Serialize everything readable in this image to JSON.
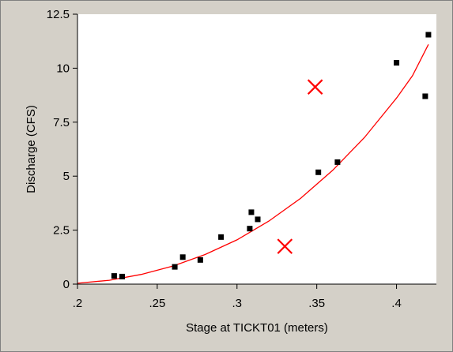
{
  "colors": {
    "background": "#d4d0c8",
    "plot_background": "#ffffff",
    "fit_line": "#ff0000",
    "excluded_marker": "#ff0000",
    "point": "#000000"
  },
  "chart_data": {
    "type": "scatter",
    "title": "",
    "xlabel": "Stage at TICKT01 (meters)",
    "ylabel": "Discharge (CFS)",
    "xlim": [
      0.2,
      0.425
    ],
    "ylim": [
      0,
      12.5
    ],
    "x_ticks": [
      0.2,
      0.25,
      0.3,
      0.35,
      0.4
    ],
    "x_tick_labels": [
      ".2",
      ".25",
      ".3",
      ".35",
      ".4"
    ],
    "y_ticks": [
      0,
      2.5,
      5,
      7.5,
      10,
      12.5
    ],
    "y_tick_labels": [
      "0",
      "2.5",
      "5",
      "7.5",
      "10",
      "12.5"
    ],
    "grid": false,
    "legend": "none",
    "series": [
      {
        "marker": "square",
        "points": [
          [
            0.223,
            0.38
          ],
          [
            0.228,
            0.35
          ],
          [
            0.261,
            0.8
          ],
          [
            0.266,
            1.25
          ],
          [
            0.277,
            1.12
          ],
          [
            0.29,
            2.18
          ],
          [
            0.308,
            2.57
          ],
          [
            0.309,
            3.33
          ],
          [
            0.313,
            3.0
          ],
          [
            0.351,
            5.18
          ],
          [
            0.363,
            5.65
          ],
          [
            0.4,
            10.25
          ],
          [
            0.418,
            8.7
          ],
          [
            0.42,
            11.55
          ]
        ]
      },
      {
        "marker": "x",
        "points": [
          [
            0.349,
            9.13
          ],
          [
            0.33,
            1.75
          ]
        ]
      },
      {
        "marker": "line",
        "points": [
          [
            0.2,
            0.04
          ],
          [
            0.22,
            0.18
          ],
          [
            0.24,
            0.45
          ],
          [
            0.26,
            0.84
          ],
          [
            0.28,
            1.37
          ],
          [
            0.3,
            2.05
          ],
          [
            0.32,
            2.92
          ],
          [
            0.34,
            3.98
          ],
          [
            0.36,
            5.27
          ],
          [
            0.38,
            6.8
          ],
          [
            0.4,
            8.62
          ],
          [
            0.41,
            9.65
          ],
          [
            0.42,
            11.1
          ]
        ]
      }
    ]
  }
}
